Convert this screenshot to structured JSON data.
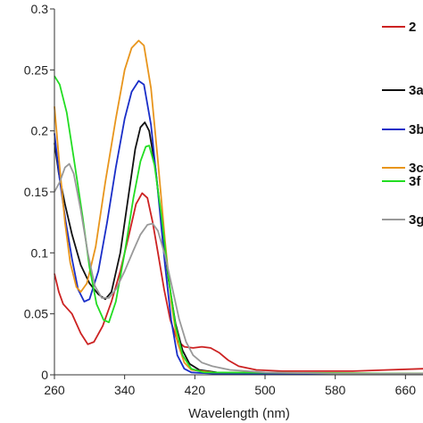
{
  "chart_data": {
    "type": "line",
    "title": "",
    "xlabel": "Wavelength (nm)",
    "ylabel": "",
    "xlim": [
      260,
      680
    ],
    "ylim": [
      0,
      0.3
    ],
    "x_ticks": [
      260,
      340,
      420,
      500,
      580,
      660
    ],
    "y_ticks": [
      0,
      0.05,
      0.1,
      0.15,
      0.2,
      0.25,
      0.3
    ],
    "y_tick_labels": [
      "0",
      "0.05",
      "0.1",
      "0.15",
      "0.2",
      "0.25",
      "0.3"
    ],
    "grid": false,
    "legend_position": "right",
    "series": [
      {
        "name": "2",
        "color": "#cc2222",
        "points": [
          [
            260,
            0.083
          ],
          [
            265,
            0.068
          ],
          [
            270,
            0.058
          ],
          [
            280,
            0.05
          ],
          [
            290,
            0.034
          ],
          [
            298,
            0.025
          ],
          [
            305,
            0.027
          ],
          [
            315,
            0.04
          ],
          [
            325,
            0.06
          ],
          [
            335,
            0.085
          ],
          [
            345,
            0.115
          ],
          [
            353,
            0.14
          ],
          [
            360,
            0.149
          ],
          [
            366,
            0.145
          ],
          [
            372,
            0.125
          ],
          [
            378,
            0.1
          ],
          [
            385,
            0.07
          ],
          [
            392,
            0.045
          ],
          [
            400,
            0.028
          ],
          [
            408,
            0.023
          ],
          [
            418,
            0.022
          ],
          [
            428,
            0.023
          ],
          [
            438,
            0.022
          ],
          [
            448,
            0.018
          ],
          [
            458,
            0.012
          ],
          [
            470,
            0.007
          ],
          [
            490,
            0.004
          ],
          [
            520,
            0.003
          ],
          [
            560,
            0.003
          ],
          [
            600,
            0.003
          ],
          [
            640,
            0.004
          ],
          [
            680,
            0.005
          ]
        ]
      },
      {
        "name": "3a",
        "color": "#111111",
        "points": [
          [
            260,
            0.19
          ],
          [
            265,
            0.165
          ],
          [
            272,
            0.14
          ],
          [
            280,
            0.115
          ],
          [
            290,
            0.09
          ],
          [
            300,
            0.075
          ],
          [
            310,
            0.066
          ],
          [
            318,
            0.062
          ],
          [
            325,
            0.068
          ],
          [
            335,
            0.1
          ],
          [
            345,
            0.15
          ],
          [
            352,
            0.185
          ],
          [
            358,
            0.203
          ],
          [
            363,
            0.207
          ],
          [
            368,
            0.2
          ],
          [
            375,
            0.17
          ],
          [
            382,
            0.125
          ],
          [
            390,
            0.078
          ],
          [
            398,
            0.042
          ],
          [
            406,
            0.02
          ],
          [
            414,
            0.009
          ],
          [
            425,
            0.004
          ],
          [
            445,
            0.002
          ],
          [
            500,
            0.001
          ],
          [
            580,
            0.001
          ],
          [
            680,
            0.001
          ]
        ]
      },
      {
        "name": "3b",
        "color": "#1a2ec8",
        "points": [
          [
            260,
            0.198
          ],
          [
            266,
            0.16
          ],
          [
            273,
            0.125
          ],
          [
            280,
            0.095
          ],
          [
            287,
            0.07
          ],
          [
            294,
            0.06
          ],
          [
            300,
            0.062
          ],
          [
            310,
            0.085
          ],
          [
            320,
            0.125
          ],
          [
            330,
            0.17
          ],
          [
            340,
            0.21
          ],
          [
            348,
            0.232
          ],
          [
            356,
            0.241
          ],
          [
            362,
            0.238
          ],
          [
            370,
            0.205
          ],
          [
            378,
            0.15
          ],
          [
            386,
            0.09
          ],
          [
            393,
            0.045
          ],
          [
            400,
            0.016
          ],
          [
            408,
            0.005
          ],
          [
            416,
            0.002
          ],
          [
            440,
            0.001
          ],
          [
            680,
            0.001
          ]
        ]
      },
      {
        "name": "3c",
        "color": "#e8951c",
        "points": [
          [
            260,
            0.22
          ],
          [
            266,
            0.17
          ],
          [
            272,
            0.125
          ],
          [
            278,
            0.092
          ],
          [
            285,
            0.072
          ],
          [
            290,
            0.068
          ],
          [
            297,
            0.075
          ],
          [
            307,
            0.105
          ],
          [
            318,
            0.158
          ],
          [
            330,
            0.21
          ],
          [
            340,
            0.25
          ],
          [
            348,
            0.268
          ],
          [
            356,
            0.274
          ],
          [
            362,
            0.27
          ],
          [
            370,
            0.235
          ],
          [
            378,
            0.175
          ],
          [
            386,
            0.11
          ],
          [
            393,
            0.06
          ],
          [
            400,
            0.027
          ],
          [
            408,
            0.01
          ],
          [
            416,
            0.004
          ],
          [
            440,
            0.002
          ],
          [
            680,
            0.001
          ]
        ]
      },
      {
        "name": "3f",
        "color": "#22dd22",
        "points": [
          [
            260,
            0.245
          ],
          [
            266,
            0.238
          ],
          [
            274,
            0.215
          ],
          [
            282,
            0.178
          ],
          [
            292,
            0.13
          ],
          [
            300,
            0.088
          ],
          [
            308,
            0.058
          ],
          [
            316,
            0.045
          ],
          [
            322,
            0.043
          ],
          [
            330,
            0.06
          ],
          [
            340,
            0.1
          ],
          [
            350,
            0.145
          ],
          [
            358,
            0.175
          ],
          [
            364,
            0.187
          ],
          [
            368,
            0.188
          ],
          [
            374,
            0.172
          ],
          [
            382,
            0.13
          ],
          [
            390,
            0.08
          ],
          [
            398,
            0.04
          ],
          [
            406,
            0.016
          ],
          [
            416,
            0.005
          ],
          [
            430,
            0.002
          ],
          [
            680,
            0.001
          ]
        ]
      },
      {
        "name": "3g",
        "color": "#999999",
        "points": [
          [
            260,
            0.15
          ],
          [
            266,
            0.158
          ],
          [
            272,
            0.17
          ],
          [
            277,
            0.173
          ],
          [
            282,
            0.165
          ],
          [
            290,
            0.135
          ],
          [
            298,
            0.1
          ],
          [
            306,
            0.073
          ],
          [
            314,
            0.063
          ],
          [
            322,
            0.063
          ],
          [
            330,
            0.07
          ],
          [
            340,
            0.085
          ],
          [
            350,
            0.102
          ],
          [
            358,
            0.115
          ],
          [
            366,
            0.123
          ],
          [
            372,
            0.124
          ],
          [
            378,
            0.118
          ],
          [
            386,
            0.098
          ],
          [
            394,
            0.072
          ],
          [
            402,
            0.046
          ],
          [
            410,
            0.027
          ],
          [
            418,
            0.016
          ],
          [
            428,
            0.01
          ],
          [
            440,
            0.007
          ],
          [
            460,
            0.004
          ],
          [
            500,
            0.002
          ],
          [
            580,
            0.001
          ],
          [
            680,
            0.001
          ]
        ]
      }
    ]
  }
}
